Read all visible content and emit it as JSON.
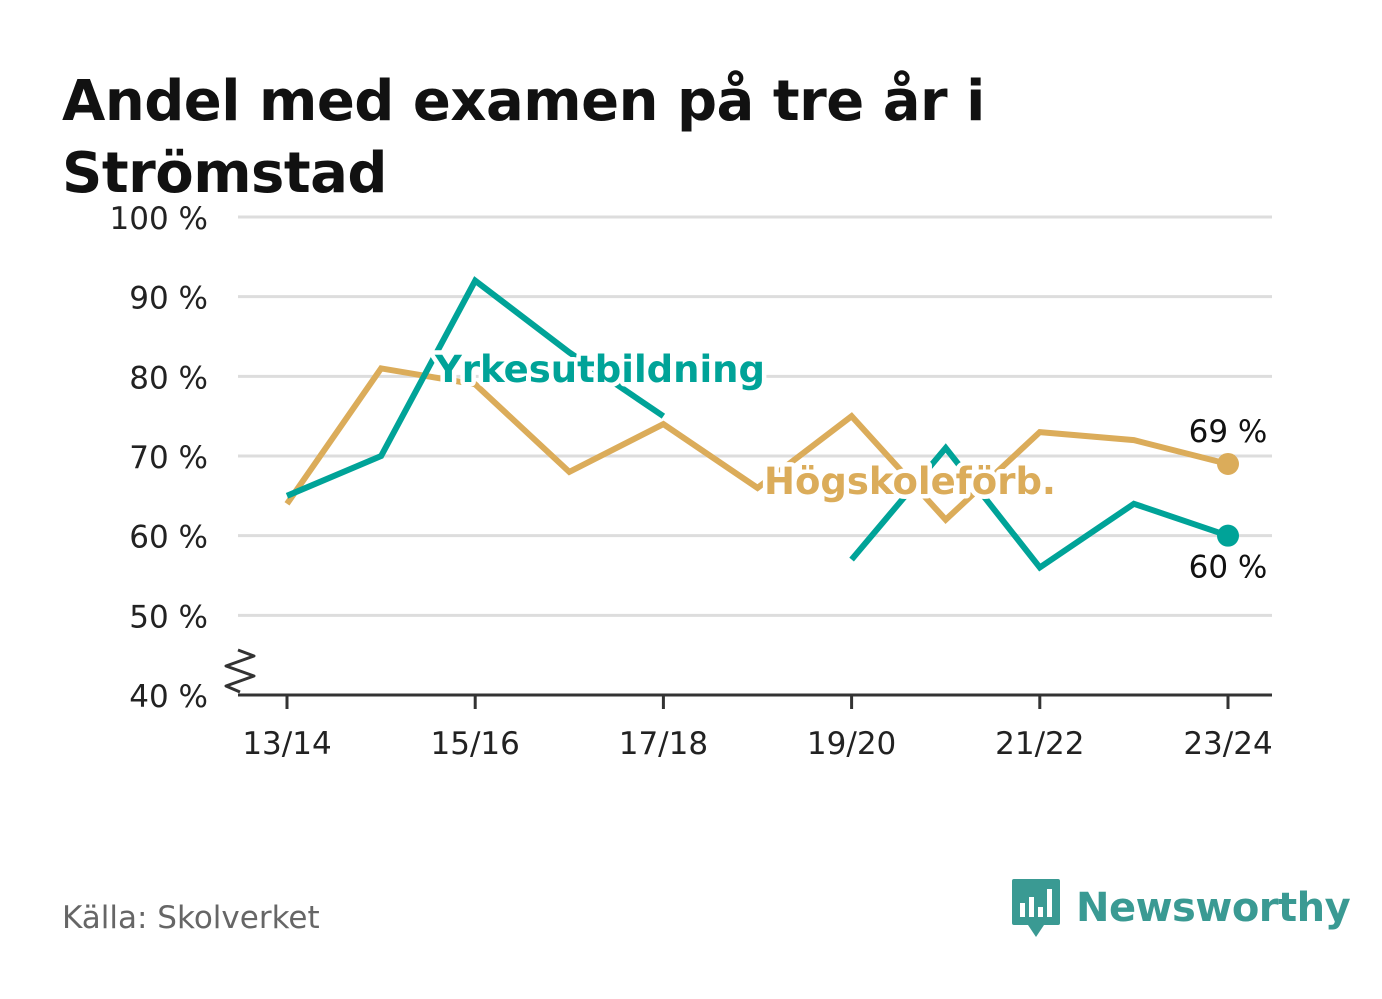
{
  "title": "Andel med examen på tre år i Strömstad",
  "source": "Källa: Skolverket",
  "brand": {
    "name": "Newsworthy",
    "icon": "bar-chart-bubble-icon"
  },
  "colors": {
    "yrkes": "#00a398",
    "hogskole": "#dbac5a",
    "grid": "#dddddd",
    "axis": "#333333"
  },
  "chart_data": {
    "type": "line",
    "title": "Andel med examen på tre år i Strömstad",
    "xlabel": "",
    "ylabel": "",
    "x": [
      "13/14",
      "14/15",
      "15/16",
      "16/17",
      "17/18",
      "18/19",
      "19/20",
      "20/21",
      "21/22",
      "22/23",
      "23/24"
    ],
    "x_tick_labels": [
      "13/14",
      "15/16",
      "17/18",
      "19/20",
      "21/22",
      "23/24"
    ],
    "ylim": [
      40,
      100
    ],
    "y_ticks": [
      40,
      50,
      60,
      70,
      80,
      90,
      100
    ],
    "y_tick_labels": [
      "40 %",
      "50 %",
      "60 %",
      "70 %",
      "80 %",
      "90 %",
      "100 %"
    ],
    "y_axis_break": true,
    "grid": true,
    "legend": "inline labels",
    "series": [
      {
        "name": "Yrkesutbildning",
        "color": "#00a398",
        "values": [
          65,
          70,
          92,
          83,
          75,
          null,
          57,
          71,
          56,
          64,
          60
        ],
        "end_label": "60 %"
      },
      {
        "name": "Högskoleförb.",
        "color": "#dbac5a",
        "values": [
          64,
          81,
          79,
          68,
          74,
          66,
          75,
          62,
          73,
          72,
          69
        ],
        "end_label": "69 %"
      }
    ]
  }
}
